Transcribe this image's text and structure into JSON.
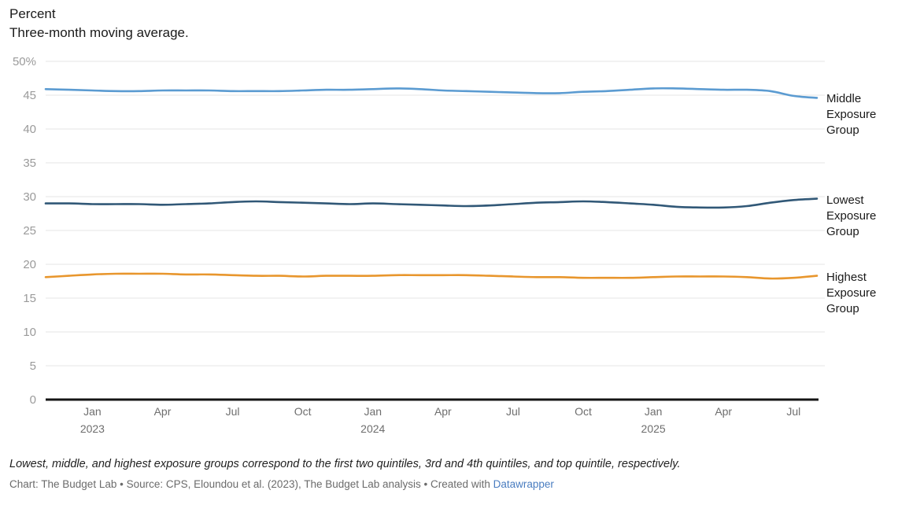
{
  "header": {
    "title": "Percent",
    "subtitle": "Three-month moving average."
  },
  "chart_data": {
    "type": "line",
    "title": "Percent",
    "subtitle": "Three-month moving average.",
    "ylim": [
      0,
      50
    ],
    "grid": true,
    "legend_position": "right-edge-labels",
    "y_ticks": [
      {
        "value": 0,
        "label": "0"
      },
      {
        "value": 5,
        "label": "5"
      },
      {
        "value": 10,
        "label": "10"
      },
      {
        "value": 15,
        "label": "15"
      },
      {
        "value": 20,
        "label": "20"
      },
      {
        "value": 25,
        "label": "25"
      },
      {
        "value": 30,
        "label": "30"
      },
      {
        "value": 35,
        "label": "35"
      },
      {
        "value": 40,
        "label": "40"
      },
      {
        "value": 45,
        "label": "45"
      },
      {
        "value": 50,
        "label": "50%"
      }
    ],
    "x_ticks": [
      {
        "i": 2,
        "label": "Jan",
        "year": "2023"
      },
      {
        "i": 5,
        "label": "Apr",
        "year": ""
      },
      {
        "i": 8,
        "label": "Jul",
        "year": ""
      },
      {
        "i": 11,
        "label": "Oct",
        "year": ""
      },
      {
        "i": 14,
        "label": "Jan",
        "year": "2024"
      },
      {
        "i": 17,
        "label": "Apr",
        "year": ""
      },
      {
        "i": 20,
        "label": "Jul",
        "year": ""
      },
      {
        "i": 23,
        "label": "Oct",
        "year": ""
      },
      {
        "i": 26,
        "label": "Jan",
        "year": "2025"
      },
      {
        "i": 29,
        "label": "Apr",
        "year": ""
      },
      {
        "i": 32,
        "label": "Jul",
        "year": ""
      }
    ],
    "categories": [
      "Nov 2022",
      "Dec 2022",
      "Jan 2023",
      "Feb 2023",
      "Mar 2023",
      "Apr 2023",
      "May 2023",
      "Jun 2023",
      "Jul 2023",
      "Aug 2023",
      "Sep 2023",
      "Oct 2023",
      "Nov 2023",
      "Dec 2023",
      "Jan 2024",
      "Feb 2024",
      "Mar 2024",
      "Apr 2024",
      "May 2024",
      "Jun 2024",
      "Jul 2024",
      "Aug 2024",
      "Sep 2024",
      "Oct 2024",
      "Nov 2024",
      "Dec 2024",
      "Jan 2025",
      "Feb 2025",
      "Mar 2025",
      "Apr 2025",
      "May 2025",
      "Jun 2025",
      "Jul 2025",
      "Aug 2025"
    ],
    "series": [
      {
        "name": "Middle Exposure Group",
        "color": "#5b9bd1",
        "values": [
          45.9,
          45.8,
          45.7,
          45.6,
          45.6,
          45.7,
          45.7,
          45.7,
          45.6,
          45.6,
          45.6,
          45.7,
          45.8,
          45.8,
          45.9,
          46.0,
          45.9,
          45.7,
          45.6,
          45.5,
          45.4,
          45.3,
          45.3,
          45.5,
          45.6,
          45.8,
          46.0,
          46.0,
          45.9,
          45.8,
          45.8,
          45.6,
          44.9,
          44.6
        ]
      },
      {
        "name": "Lowest Exposure Group",
        "color": "#315877",
        "values": [
          29.0,
          29.0,
          28.9,
          28.9,
          28.9,
          28.8,
          28.9,
          29.0,
          29.2,
          29.3,
          29.2,
          29.1,
          29.0,
          28.9,
          29.0,
          28.9,
          28.8,
          28.7,
          28.6,
          28.7,
          28.9,
          29.1,
          29.2,
          29.3,
          29.2,
          29.0,
          28.8,
          28.5,
          28.4,
          28.4,
          28.6,
          29.1,
          29.5,
          29.7
        ]
      },
      {
        "name": "Highest Exposure Group",
        "color": "#e8962d",
        "values": [
          18.1,
          18.3,
          18.5,
          18.6,
          18.6,
          18.6,
          18.5,
          18.5,
          18.4,
          18.3,
          18.3,
          18.2,
          18.3,
          18.3,
          18.3,
          18.4,
          18.4,
          18.4,
          18.4,
          18.3,
          18.2,
          18.1,
          18.1,
          18.0,
          18.0,
          18.0,
          18.1,
          18.2,
          18.2,
          18.2,
          18.1,
          17.9,
          18.0,
          18.3
        ]
      }
    ],
    "colors": {
      "gridline": "#e5e5e5",
      "axis_line": "#141414",
      "y_tick_text": "#9a9a9a",
      "x_tick_text": "#6e6e6e",
      "link_blue": "#4a7dc0"
    }
  },
  "footer": {
    "note": "Lowest, middle, and highest exposure groups correspond to the first two quintiles, 3rd and 4th quintiles, and top quintile, respectively.",
    "credit_prefix": "Chart: The Budget Lab • Source: CPS, Eloundou et al. (2023), The Budget Lab analysis • Created with ",
    "link_label": "Datawrapper"
  }
}
